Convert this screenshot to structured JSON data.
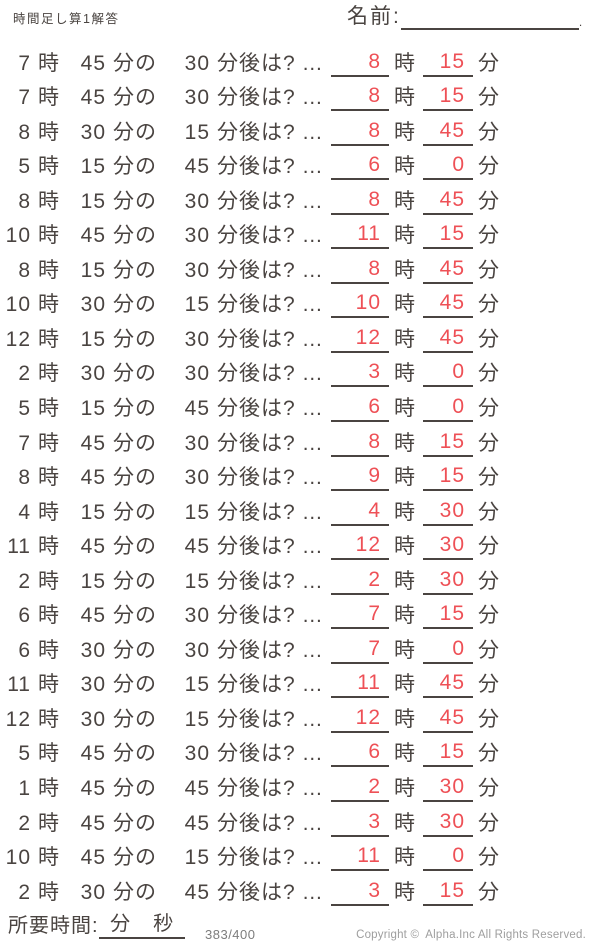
{
  "page": {
    "title": "時間足し算1解答",
    "name_label": "名前:",
    "name_line_end": "."
  },
  "labels": {
    "hour": "時",
    "minute_no": "分の",
    "after": "分後は?",
    "dots": "…",
    "minute": "分"
  },
  "problems": [
    {
      "h": 7,
      "m": 45,
      "add": 30,
      "ans_h": 8,
      "ans_m": 15
    },
    {
      "h": 7,
      "m": 45,
      "add": 30,
      "ans_h": 8,
      "ans_m": 15
    },
    {
      "h": 8,
      "m": 30,
      "add": 15,
      "ans_h": 8,
      "ans_m": 45
    },
    {
      "h": 5,
      "m": 15,
      "add": 45,
      "ans_h": 6,
      "ans_m": 0
    },
    {
      "h": 8,
      "m": 15,
      "add": 30,
      "ans_h": 8,
      "ans_m": 45
    },
    {
      "h": 10,
      "m": 45,
      "add": 30,
      "ans_h": 11,
      "ans_m": 15
    },
    {
      "h": 8,
      "m": 15,
      "add": 30,
      "ans_h": 8,
      "ans_m": 45
    },
    {
      "h": 10,
      "m": 30,
      "add": 15,
      "ans_h": 10,
      "ans_m": 45
    },
    {
      "h": 12,
      "m": 15,
      "add": 30,
      "ans_h": 12,
      "ans_m": 45
    },
    {
      "h": 2,
      "m": 30,
      "add": 30,
      "ans_h": 3,
      "ans_m": 0
    },
    {
      "h": 5,
      "m": 15,
      "add": 45,
      "ans_h": 6,
      "ans_m": 0
    },
    {
      "h": 7,
      "m": 45,
      "add": 30,
      "ans_h": 8,
      "ans_m": 15
    },
    {
      "h": 8,
      "m": 45,
      "add": 30,
      "ans_h": 9,
      "ans_m": 15
    },
    {
      "h": 4,
      "m": 15,
      "add": 15,
      "ans_h": 4,
      "ans_m": 30
    },
    {
      "h": 11,
      "m": 45,
      "add": 45,
      "ans_h": 12,
      "ans_m": 30
    },
    {
      "h": 2,
      "m": 15,
      "add": 15,
      "ans_h": 2,
      "ans_m": 30
    },
    {
      "h": 6,
      "m": 45,
      "add": 30,
      "ans_h": 7,
      "ans_m": 15
    },
    {
      "h": 6,
      "m": 30,
      "add": 30,
      "ans_h": 7,
      "ans_m": 0
    },
    {
      "h": 11,
      "m": 30,
      "add": 15,
      "ans_h": 11,
      "ans_m": 45
    },
    {
      "h": 12,
      "m": 30,
      "add": 15,
      "ans_h": 12,
      "ans_m": 45
    },
    {
      "h": 5,
      "m": 45,
      "add": 30,
      "ans_h": 6,
      "ans_m": 15
    },
    {
      "h": 1,
      "m": 45,
      "add": 45,
      "ans_h": 2,
      "ans_m": 30
    },
    {
      "h": 2,
      "m": 45,
      "add": 45,
      "ans_h": 3,
      "ans_m": 30
    },
    {
      "h": 10,
      "m": 45,
      "add": 15,
      "ans_h": 11,
      "ans_m": 0
    },
    {
      "h": 2,
      "m": 30,
      "add": 45,
      "ans_h": 3,
      "ans_m": 15
    }
  ],
  "footer": {
    "elapsed_label": "所要時間:",
    "minutes": "分",
    "seconds": "秒",
    "score": "383/400",
    "copyright": "Copyright ©  Alpha.Inc All Rights Reserved."
  },
  "colors": {
    "ink": "#4a4441",
    "red": "#ee5056",
    "score": "#7d7d7d",
    "muted": "#9e9e9e"
  }
}
